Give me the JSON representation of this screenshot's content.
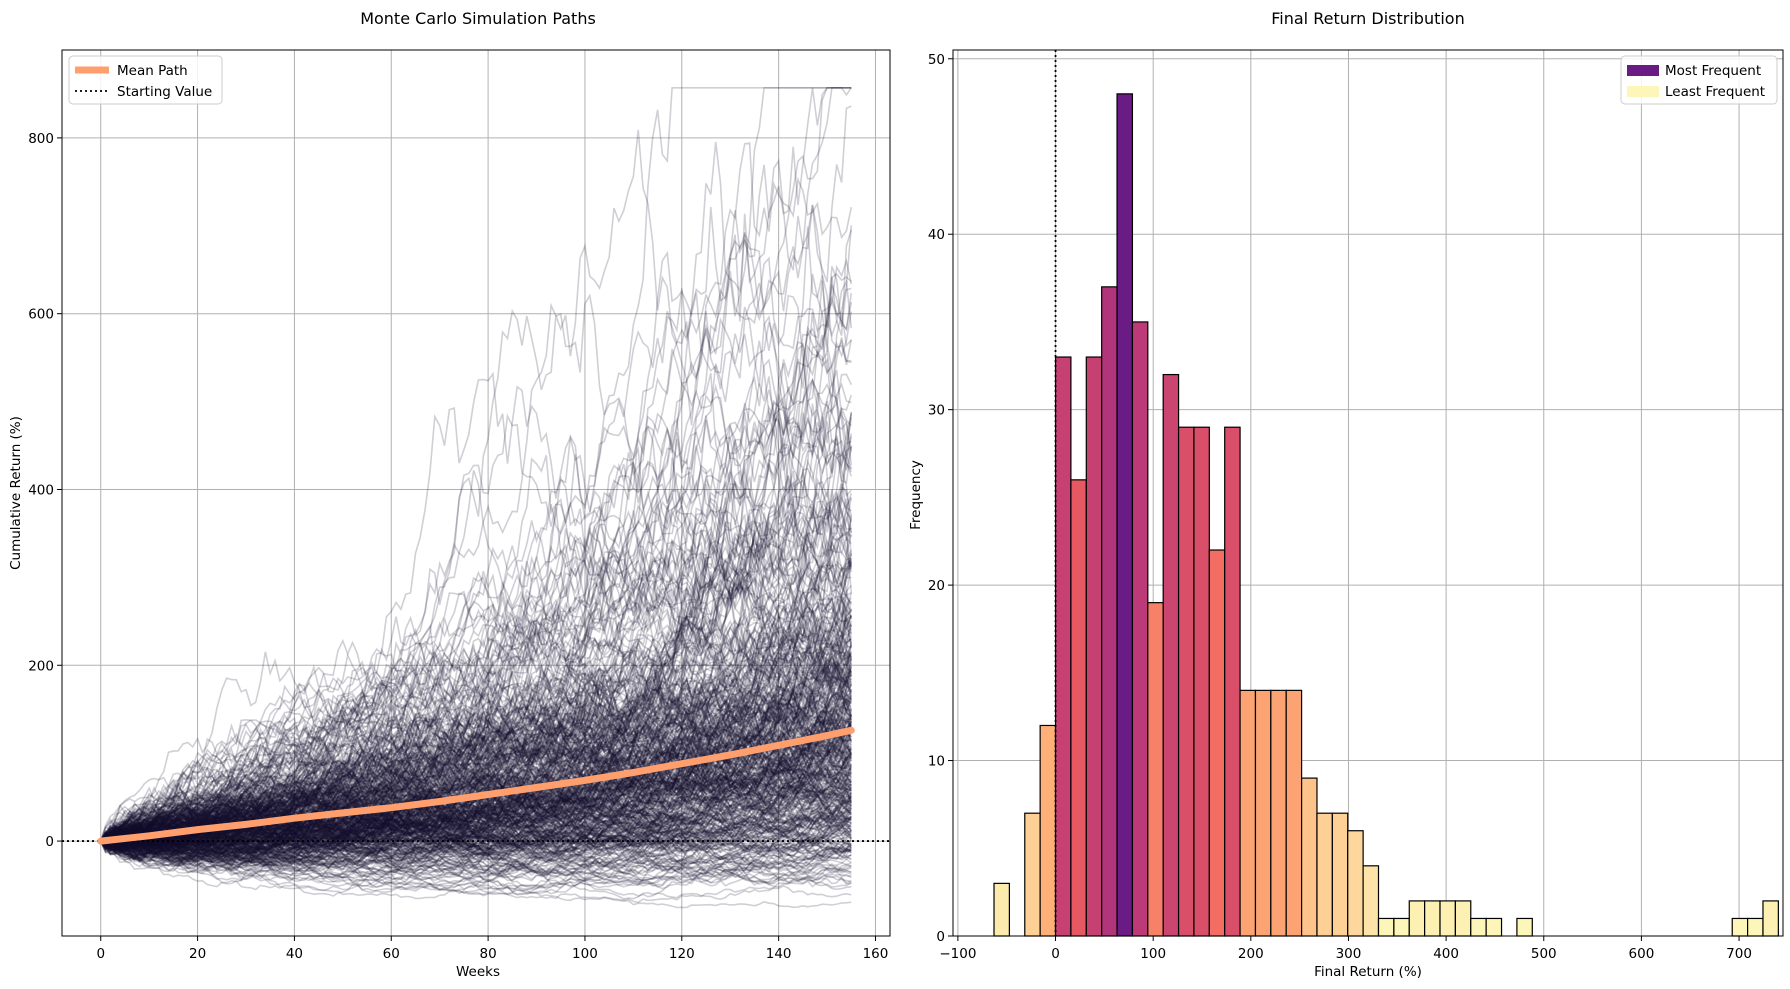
{
  "chart_data": [
    {
      "type": "line",
      "title": "Monte Carlo Simulation Paths",
      "xlabel": "Weeks",
      "ylabel": "Cumulative Return (%)",
      "xlim": [
        -8,
        163
      ],
      "ylim": [
        -108,
        900
      ],
      "xticks": [
        0,
        20,
        40,
        60,
        80,
        100,
        120,
        140,
        160
      ],
      "yticks": [
        0,
        200,
        400,
        600,
        800
      ],
      "grid": true,
      "legend": "top-left",
      "legend_entries": [
        "Mean Path",
        "Starting Value"
      ],
      "simulated_paths": {
        "count": 500,
        "weeks": 155,
        "final_value_range": [
          -62,
          730
        ],
        "max_value_observed": 857,
        "color": "#14102e",
        "opacity": 0.2
      },
      "series": [
        {
          "name": "Mean Path",
          "color": "#fe9f6d",
          "x": [
            0,
            10,
            20,
            30,
            40,
            50,
            60,
            70,
            80,
            90,
            100,
            110,
            120,
            130,
            140,
            150,
            155
          ],
          "values": [
            0,
            6,
            13,
            19,
            26,
            32,
            38,
            45,
            53,
            61,
            69,
            78,
            88,
            98,
            109,
            120,
            126
          ]
        },
        {
          "name": "Starting Value",
          "color": "#000000",
          "style": "dotted",
          "y": 0
        }
      ]
    },
    {
      "type": "bar",
      "title": "Final Return Distribution",
      "xlabel": "Final Return (%)",
      "ylabel": "Frequency",
      "xlim": [
        -105,
        745
      ],
      "ylim": [
        0,
        50.5
      ],
      "xticks": [
        -100,
        0,
        100,
        200,
        300,
        400,
        500,
        600,
        700
      ],
      "xtick_labels": [
        "−100",
        "0",
        "100",
        "200",
        "300",
        "400",
        "500",
        "600",
        "700"
      ],
      "yticks": [
        0,
        10,
        20,
        30,
        40,
        50
      ],
      "grid": true,
      "legend": "top-right",
      "legend_entries": [
        {
          "label": "Most Frequent",
          "color": "#6a1b84"
        },
        {
          "label": "Least Frequent",
          "color": "#fcf7b9"
        }
      ],
      "reference_line": {
        "x": 0,
        "style": "dotted",
        "color": "#000000"
      },
      "bin_start": -63,
      "bin_width": 15.75,
      "values": [
        3,
        0,
        7,
        12,
        33,
        26,
        33,
        37,
        48,
        35,
        19,
        32,
        29,
        29,
        22,
        29,
        14,
        14,
        14,
        14,
        9,
        7,
        7,
        6,
        4,
        1,
        1,
        2,
        2,
        2,
        2,
        1,
        1,
        0,
        1,
        0,
        0,
        0,
        0,
        0,
        0,
        0,
        0,
        0,
        0,
        0,
        0,
        0,
        1,
        1,
        2
      ]
    }
  ]
}
